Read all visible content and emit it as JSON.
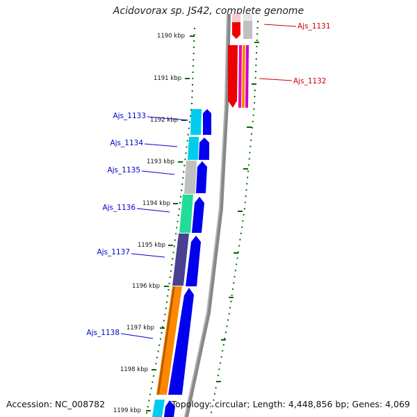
{
  "title": "Acidovorax sp. JS42, complete genome",
  "footer": {
    "accession": "Accession: NC_008782",
    "topology": "Topology: circular; Length: 4,448,856 bp; Genes: 4,069"
  },
  "colors": {
    "forward_label": "#cc0000",
    "reverse_label": "#0000cc",
    "tick": "#006600",
    "backbone": "#888888"
  },
  "scale": {
    "unit": "kbp",
    "ticks": [
      "1190 kbp",
      "1191 kbp",
      "1192 kbp",
      "1193 kbp",
      "1194 kbp",
      "1195 kbp",
      "1196 kbp",
      "1197 kbp",
      "1198 kbp",
      "1199 kbp"
    ]
  },
  "forward_genes": [
    {
      "name": "Ajs_1131",
      "color": "#ee0000"
    },
    {
      "name": "Ajs_1132",
      "color": "#ee0000"
    }
  ],
  "reverse_genes": [
    {
      "name": "Ajs_1133",
      "color": "#00ccee"
    },
    {
      "name": "Ajs_1134",
      "color": "#00ccee"
    },
    {
      "name": "Ajs_1135",
      "color": "#c0c0c0"
    },
    {
      "name": "Ajs_1136",
      "color": "#22dd99"
    },
    {
      "name": "Ajs_1137",
      "color": "#4a4090"
    },
    {
      "name": "Ajs_1138",
      "color": "#ff8800"
    }
  ]
}
